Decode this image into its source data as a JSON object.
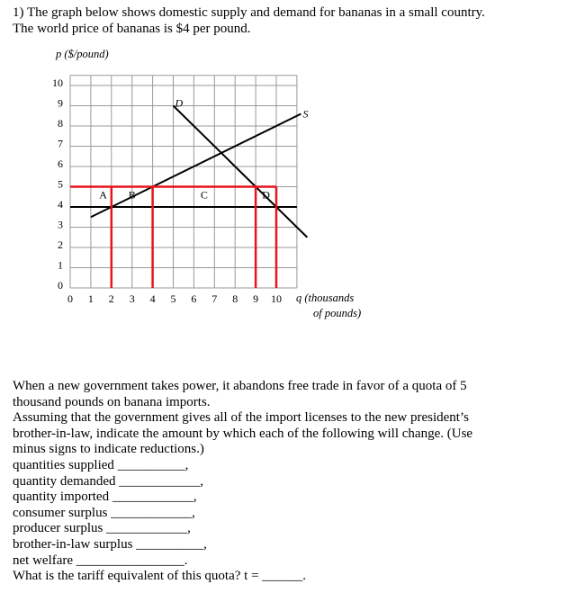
{
  "problem": {
    "lines": [
      "1) The graph below shows domestic supply and demand for bananas in a small country.",
      "The world price of bananas is $4 per pound."
    ]
  },
  "chart_data": {
    "type": "line",
    "y_label": "p ($/pound)",
    "x_label": [
      "q (thousands",
      "of pounds)"
    ],
    "xlim": [
      0,
      11
    ],
    "ylim": [
      0,
      10.5
    ],
    "xticks": [
      0,
      1,
      2,
      3,
      4,
      5,
      6,
      7,
      8,
      9,
      10
    ],
    "yticks": [
      0,
      1,
      2,
      3,
      4,
      5,
      6,
      7,
      8,
      9,
      10
    ],
    "grid": true,
    "series": [
      {
        "name": "D",
        "color": "#000000",
        "x": [
          5,
          11.5
        ],
        "values": [
          9,
          2.5
        ]
      },
      {
        "name": "S",
        "color": "#000000",
        "x": [
          1,
          11.2
        ],
        "values": [
          3.5,
          8.6
        ]
      }
    ],
    "world_price": 4,
    "quota_price": 5,
    "quota_quantities": [
      2,
      4,
      9,
      10
    ],
    "highlight_color": "#e8141b",
    "areas": [
      "A",
      "B",
      "C",
      "D"
    ]
  },
  "text": {
    "paragraph": [
      "When a new government takes power, it abandons free trade in favor of a quota of 5",
      "thousand pounds on banana imports.",
      "Assuming that the government gives all of the import licenses to the new president’s",
      "brother-in-law, indicate the amount by which each of the following will change. (Use",
      "minus signs to indicate reductions.)"
    ],
    "items": [
      "quantities supplied __________,",
      "quantity demanded ____________,",
      "quantity imported ____________,",
      "consumer surplus ____________,",
      "producer surplus ____________,",
      "brother-in-law surplus __________,",
      "net welfare ________________.",
      "What is the tariff equivalent of this quota? t = ______."
    ]
  }
}
